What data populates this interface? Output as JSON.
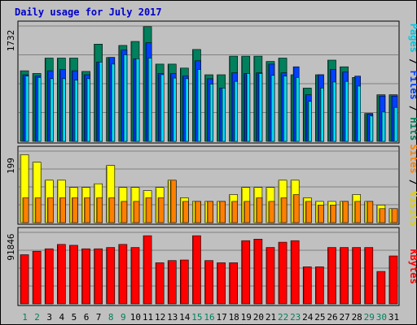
{
  "chart_data": {
    "type": "bar",
    "title": "Daily usage for July 2017",
    "categories": [
      "1",
      "2",
      "3",
      "4",
      "5",
      "6",
      "7",
      "8",
      "9",
      "10",
      "11",
      "12",
      "13",
      "14",
      "15",
      "16",
      "17",
      "18",
      "19",
      "20",
      "21",
      "22",
      "23",
      "24",
      "25",
      "26",
      "27",
      "28",
      "29",
      "30",
      "31"
    ],
    "weekend_days": [
      "1",
      "2",
      "8",
      "9",
      "15",
      "16",
      "22",
      "23",
      "29",
      "30"
    ],
    "panels": [
      {
        "name": "top",
        "max_label": "1732",
        "ylim": [
          0,
          1732
        ],
        "right_label": [
          "Pages",
          "Files",
          "Hits"
        ],
        "series": [
          {
            "name": "Hits",
            "color": "#00805c",
            "values": [
              1060,
              1020,
              1250,
              1250,
              1250,
              1050,
              1460,
              1260,
              1440,
              1500,
              1722,
              1160,
              1160,
              1100,
              1380,
              1000,
              1000,
              1280,
              1280,
              1280,
              1200,
              1250,
              1000,
              800,
              1000,
              1220,
              1120,
              960,
              420,
              700,
              700
            ]
          },
          {
            "name": "Files",
            "color": "#0040ff",
            "values": [
              1000,
              980,
              1060,
              1080,
              1060,
              1000,
              1190,
              1260,
              1370,
              1240,
              1480,
              1020,
              1020,
              980,
              1210,
              940,
              800,
              1030,
              1020,
              1030,
              1160,
              1030,
              1120,
              700,
              1000,
              1080,
              1040,
              980,
              410,
              680,
              680
            ]
          },
          {
            "name": "Pages",
            "color": "#00e0ff",
            "values": [
              980,
              960,
              940,
              940,
              920,
              940,
              1190,
              1160,
              1300,
              1240,
              1250,
              1000,
              950,
              940,
              1080,
              860,
              800,
              900,
              1020,
              1020,
              990,
              980,
              960,
              600,
              800,
              890,
              900,
              830,
              380,
              440,
              510
            ]
          }
        ]
      },
      {
        "name": "middle",
        "max_label": "199",
        "ylim": [
          0,
          199
        ],
        "right_label": [
          "Sites",
          "Visits"
        ],
        "series": [
          {
            "name": "Visits",
            "color": "#ffff00",
            "values": [
              189,
              168,
              118,
              118,
              98,
              98,
              108,
              159,
              98,
              98,
              89,
              98,
              118,
              69,
              59,
              59,
              59,
              78,
              98,
              98,
              98,
              118,
              118,
              69,
              59,
              59,
              59,
              78,
              59,
              49,
              39
            ]
          },
          {
            "name": "Sites",
            "color": "#ff8000",
            "values": [
              69,
              69,
              69,
              69,
              69,
              69,
              69,
              69,
              59,
              59,
              69,
              69,
              118,
              59,
              59,
              59,
              59,
              59,
              59,
              69,
              59,
              69,
              78,
              59,
              49,
              49,
              59,
              59,
              59,
              39,
              39
            ]
          }
        ]
      },
      {
        "name": "bottom",
        "max_label": "91846",
        "ylim": [
          0,
          91846
        ],
        "right_label": [
          "KBytes"
        ],
        "series": [
          {
            "name": "KBytes",
            "color": "#ff0000",
            "values": [
              63100,
              67600,
              70800,
              76400,
              75200,
              70800,
              70800,
              72400,
              76400,
              72400,
              87600,
              52800,
              55600,
              56400,
              87600,
              55600,
              52800,
              52800,
              81200,
              83200,
              72400,
              79200,
              81200,
              47600,
              47600,
              72400,
              72400,
              72400,
              72400,
              41600,
              61600
            ]
          }
        ]
      }
    ]
  }
}
